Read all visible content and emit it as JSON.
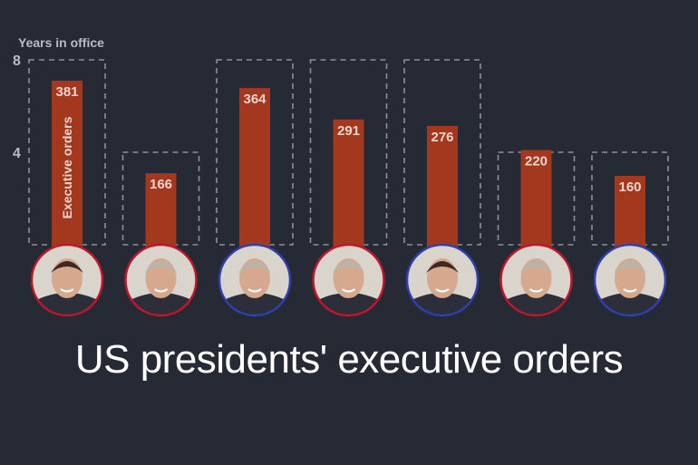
{
  "title": "US presidents' executive orders",
  "chart_data": {
    "type": "bar",
    "title": "US presidents' executive orders",
    "ylabel": "Years in office",
    "yticks": [
      4,
      8
    ],
    "bar_label": "Executive orders",
    "series": [
      {
        "name": "Executive orders",
        "values": [
          381,
          166,
          364,
          291,
          276,
          220,
          160
        ]
      },
      {
        "name": "Years in office",
        "values": [
          8,
          4,
          8,
          8,
          8,
          4,
          4
        ]
      }
    ],
    "categories": [
      "",
      "",
      "",
      "",
      "",
      "",
      ""
    ],
    "party_colors": [
      "#c0152b",
      "#c0152b",
      "#2e3fb0",
      "#c0152b",
      "#2e3fb0",
      "#c0152b",
      "#2e3fb0"
    ],
    "colors": {
      "bar": "#a3381f",
      "background": "#262a35",
      "term_box": "#8d9098"
    }
  }
}
